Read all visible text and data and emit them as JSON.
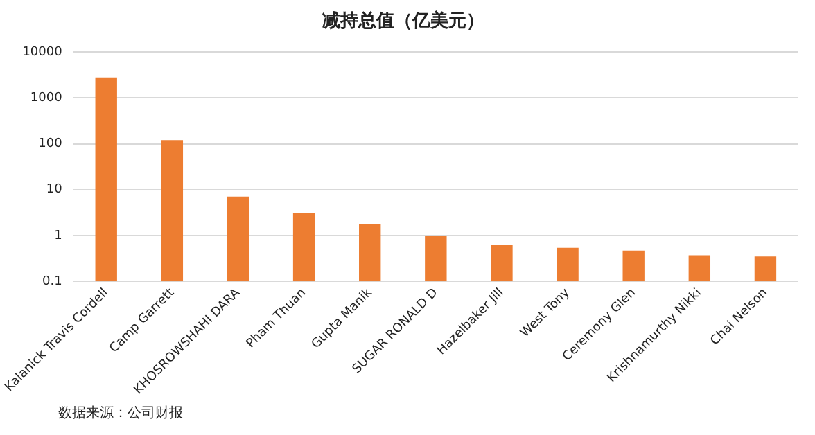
{
  "chart_data": {
    "type": "bar",
    "title": "减持总值（亿美元）",
    "categories": [
      "Kalanick Travis Cordell",
      "Camp Garrett",
      "KHOSROWSHAHI DARA",
      "Pham Thuan",
      "Gupta Manik",
      "SUGAR RONALD D",
      "Hazelbaker Jill",
      "West Tony",
      "Ceremony Glen",
      "Krishnamurthy Nikki",
      "Chai Nelson"
    ],
    "values": [
      2800,
      120,
      7.1,
      3.1,
      1.8,
      0.98,
      0.62,
      0.54,
      0.47,
      0.37,
      0.35
    ],
    "color": "#ed7d31",
    "log": true,
    "ylim": [
      0.1,
      10000
    ],
    "yticks": [
      0.1,
      1,
      10,
      100,
      1000,
      10000
    ],
    "grid": "y",
    "legend": false,
    "annotations": [
      "数据来源：公司财报"
    ]
  }
}
